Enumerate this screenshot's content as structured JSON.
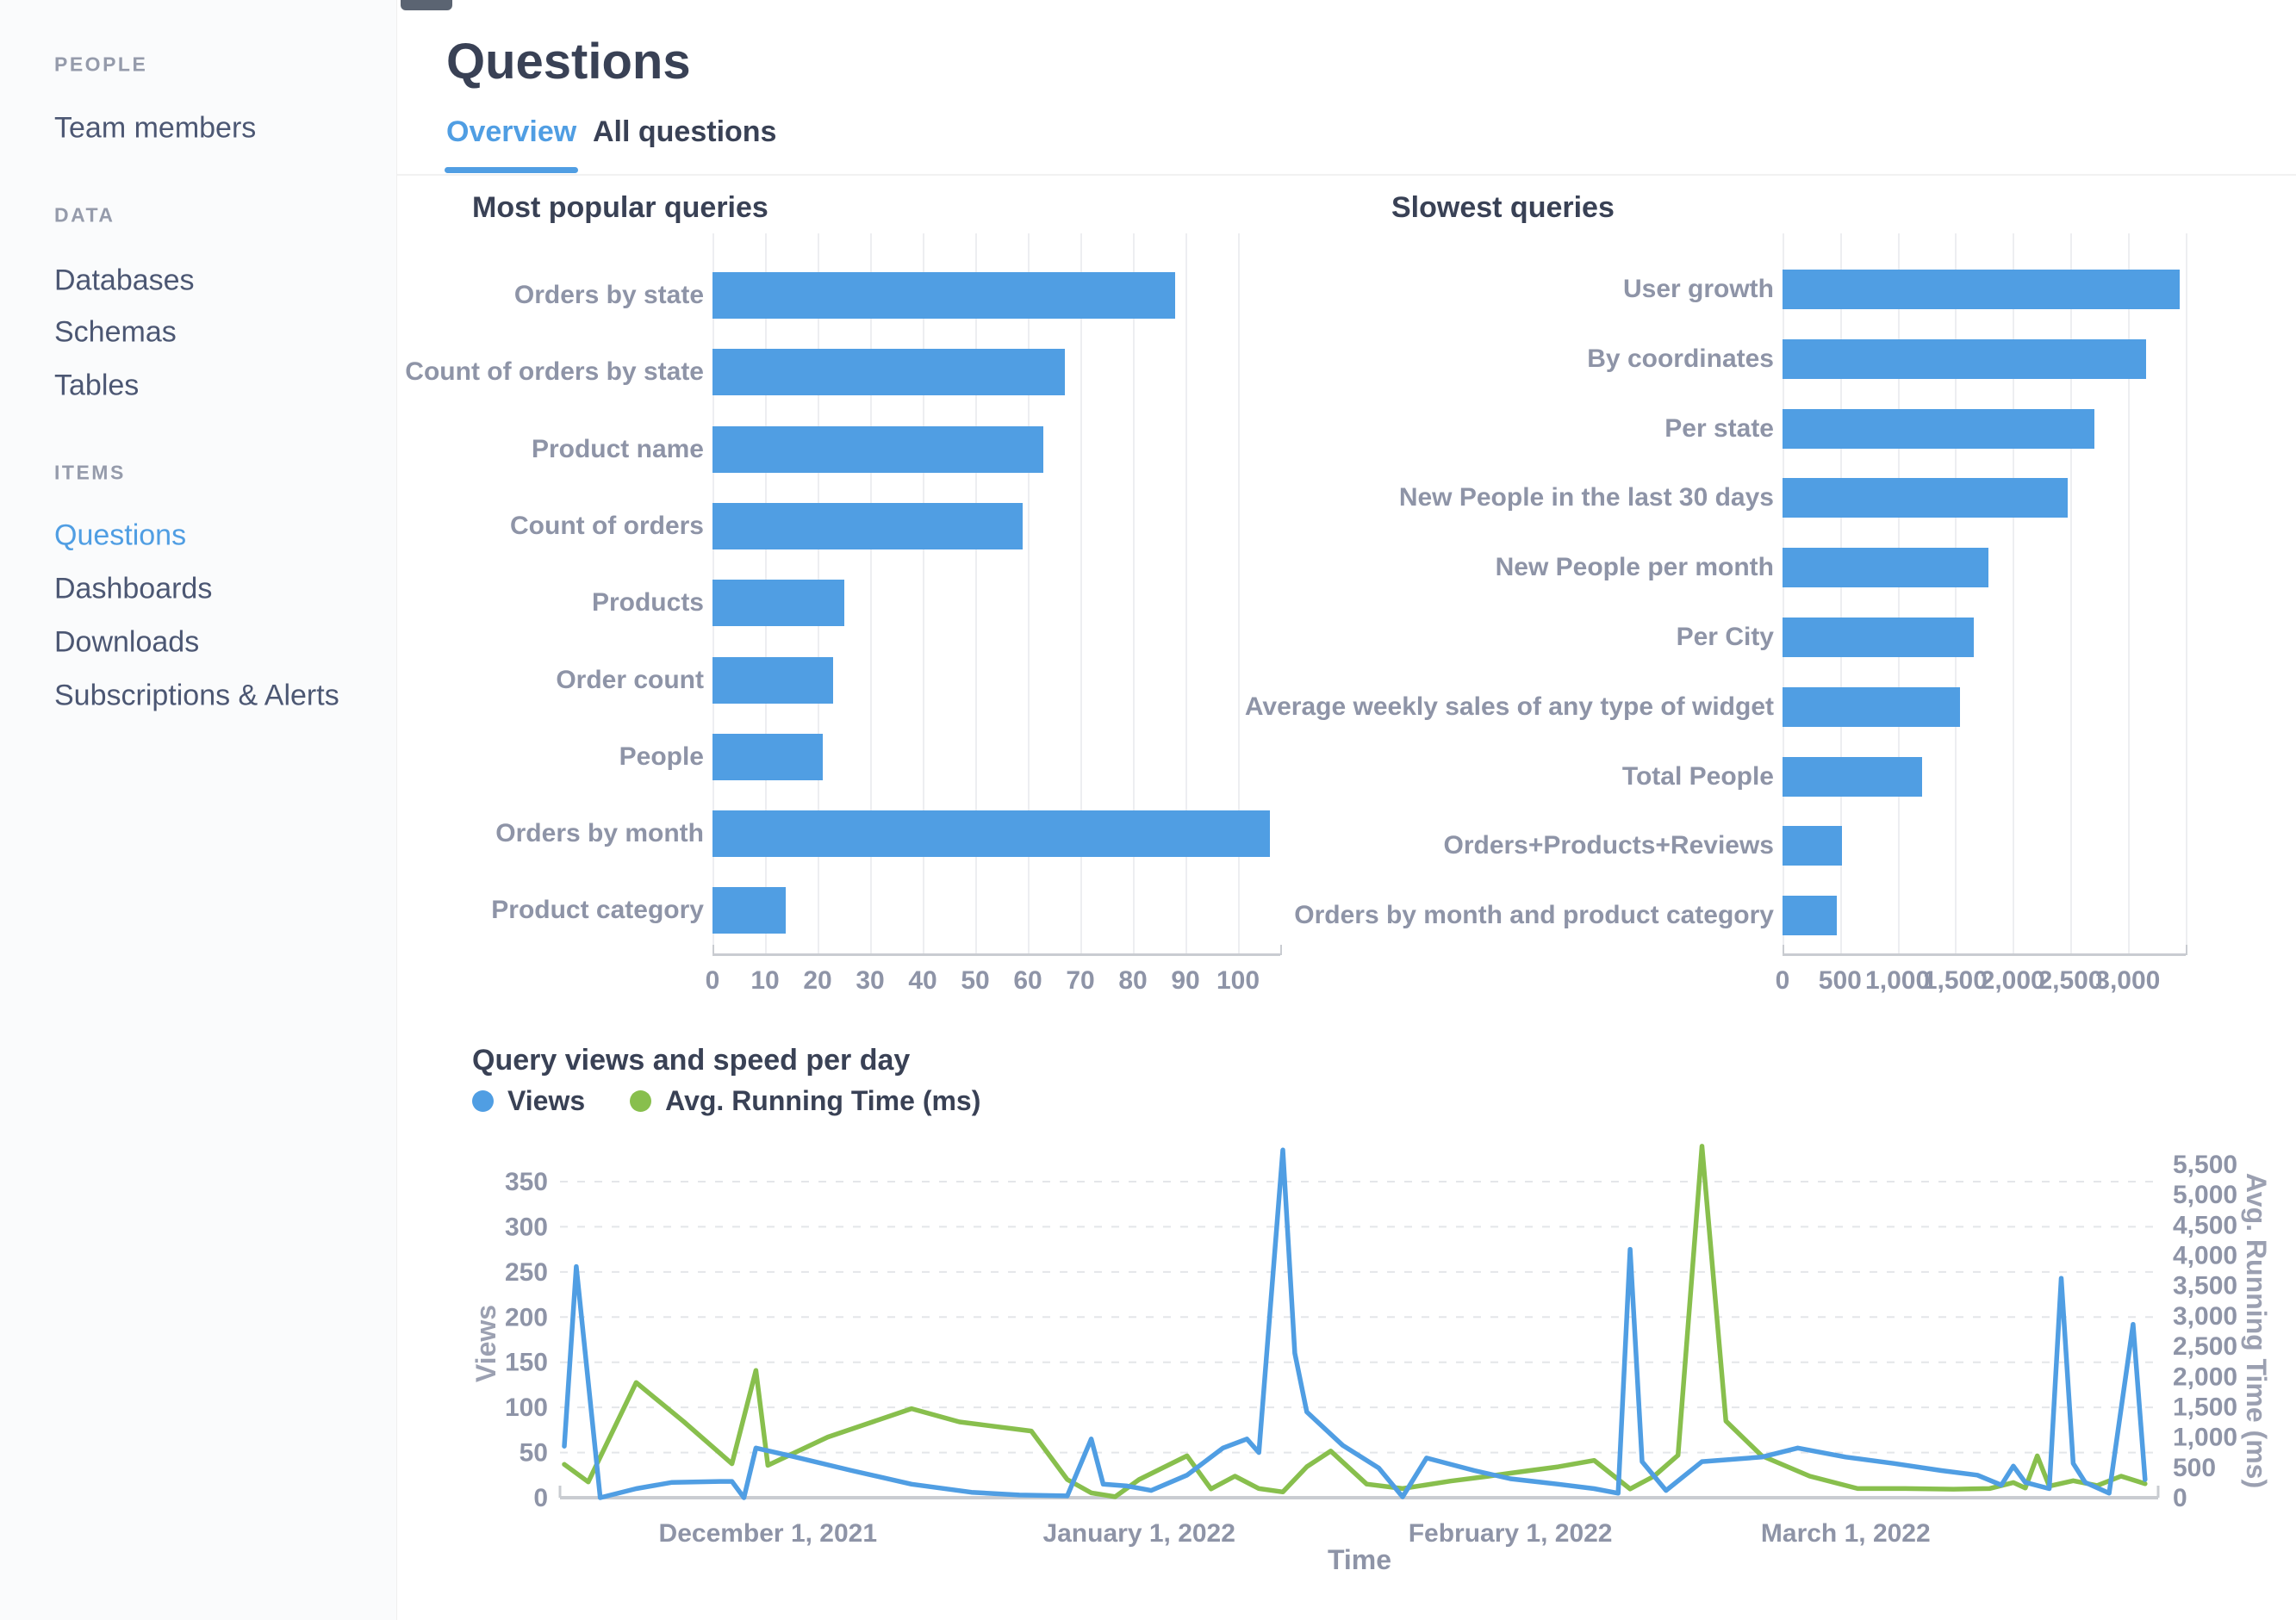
{
  "sidebar": {
    "sections": [
      {
        "title": "PEOPLE",
        "items": [
          {
            "label": "Team members",
            "active": false
          }
        ]
      },
      {
        "title": "DATA",
        "items": [
          {
            "label": "Databases",
            "active": false
          },
          {
            "label": "Schemas",
            "active": false
          },
          {
            "label": "Tables",
            "active": false
          }
        ]
      },
      {
        "title": "ITEMS",
        "items": [
          {
            "label": "Questions",
            "active": true
          },
          {
            "label": "Dashboards",
            "active": false
          },
          {
            "label": "Downloads",
            "active": false
          },
          {
            "label": "Subscriptions & Alerts",
            "active": false
          }
        ]
      }
    ]
  },
  "header": {
    "title": "Questions",
    "tabs": [
      {
        "label": "Overview",
        "active": true
      },
      {
        "label": "All questions",
        "active": false
      }
    ]
  },
  "colors": {
    "accent_blue": "#509EE3",
    "accent_green": "#88BF4D",
    "text_dark": "#394155",
    "text_gray": "#8E94A7",
    "gridline": "#EDEEF1",
    "axis_line": "#C9CCD1",
    "sidebar_bg": "#FAFBFC"
  },
  "chart_data": [
    {
      "type": "bar",
      "orientation": "horizontal",
      "title": "Most popular queries",
      "categories": [
        "Orders by state",
        "Count of orders by state",
        "Product name",
        "Count of orders",
        "Products",
        "Order count",
        "People",
        "Orders by month",
        "Product category"
      ],
      "values": [
        88,
        67,
        63,
        59,
        25,
        23,
        21,
        106,
        14
      ],
      "xlim": [
        0,
        108
      ],
      "grid_step": 10,
      "xtick_values": [
        0,
        10,
        20,
        30,
        40,
        50,
        60,
        70,
        80,
        90,
        100
      ],
      "xtick_labels": [
        "0",
        "10",
        "20",
        "30",
        "40",
        "50",
        "60",
        "70",
        "80",
        "90",
        "100"
      ],
      "bar_color": "#509EE3",
      "grid": true
    },
    {
      "type": "bar",
      "orientation": "horizontal",
      "title": "Slowest queries",
      "categories": [
        "User growth",
        "By coordinates",
        "Per state",
        "New People in the last 30 days",
        "New People per month",
        "Per City",
        "Average weekly sales of any type of widget",
        "Total People",
        "Orders+Products+Reviews",
        "Orders by month and product category"
      ],
      "values": [
        3450,
        3160,
        2710,
        2480,
        1790,
        1660,
        1540,
        1210,
        520,
        470
      ],
      "xlim": [
        0,
        3500
      ],
      "grid_step": 500,
      "xtick_values": [
        0,
        500,
        1000,
        1500,
        2000,
        2500,
        3000
      ],
      "xtick_labels": [
        "0",
        "500",
        "1,000",
        "1,500",
        "2,000",
        "2,500",
        "3,000"
      ],
      "bar_color": "#509EE3",
      "grid": true
    },
    {
      "type": "line",
      "title": "Query views and speed per day",
      "xlabel": "Time",
      "x_span_days": 134,
      "x_ticks": [
        {
          "day": 17,
          "label": "December 1, 2021"
        },
        {
          "day": 48,
          "label": "January 1, 2022"
        },
        {
          "day": 79,
          "label": "February 1, 2022"
        },
        {
          "day": 107,
          "label": "March 1, 2022"
        }
      ],
      "left_axis": {
        "label": "Views",
        "min": 0,
        "max": 350,
        "tick_step": 50,
        "tick_labels": [
          "0",
          "50",
          "100",
          "150",
          "200",
          "250",
          "300",
          "350"
        ]
      },
      "right_axis": {
        "label": "Avg. Running Time (ms)",
        "min": 0,
        "max": 5500,
        "tick_step": 500,
        "tick_labels": [
          "0",
          "500",
          "1,000",
          "1,500",
          "2,000",
          "2,500",
          "3,000",
          "3,500",
          "4,000",
          "4,500",
          "5,000",
          "5,500"
        ]
      },
      "grid": "dashed-horizontal",
      "legend_position": "top-left",
      "series": [
        {
          "name": "Views",
          "color": "#509EE3",
          "axis": "left",
          "points": [
            [
              0,
              57
            ],
            [
              1,
              256
            ],
            [
              3,
              0
            ],
            [
              6,
              10
            ],
            [
              9,
              17
            ],
            [
              13,
              18
            ],
            [
              14,
              18
            ],
            [
              15,
              0
            ],
            [
              16,
              55
            ],
            [
              19,
              46
            ],
            [
              24,
              30
            ],
            [
              29,
              15
            ],
            [
              34,
              6
            ],
            [
              38,
              3
            ],
            [
              42,
              2
            ],
            [
              44,
              65
            ],
            [
              45,
              15
            ],
            [
              47,
              13
            ],
            [
              49,
              8
            ],
            [
              52,
              25
            ],
            [
              55,
              55
            ],
            [
              57,
              65
            ],
            [
              58,
              50
            ],
            [
              60,
              385
            ],
            [
              61,
              160
            ],
            [
              62,
              95
            ],
            [
              65,
              58
            ],
            [
              68,
              33
            ],
            [
              70,
              1
            ],
            [
              72,
              44
            ],
            [
              76,
              30
            ],
            [
              79,
              21
            ],
            [
              83,
              15
            ],
            [
              86,
              10
            ],
            [
              88,
              5
            ],
            [
              89,
              275
            ],
            [
              90,
              40
            ],
            [
              92,
              8
            ],
            [
              95,
              40
            ],
            [
              100,
              45
            ],
            [
              103,
              55
            ],
            [
              107,
              45
            ],
            [
              111,
              38
            ],
            [
              115,
              30
            ],
            [
              118,
              25
            ],
            [
              120,
              14
            ],
            [
              121,
              35
            ],
            [
              122,
              17
            ],
            [
              124,
              10
            ],
            [
              125,
              243
            ],
            [
              126,
              38
            ],
            [
              127,
              17
            ],
            [
              129,
              5
            ],
            [
              131,
              192
            ],
            [
              132,
              20
            ]
          ]
        },
        {
          "name": "Avg. Running Time (ms)",
          "color": "#88BF4D",
          "axis": "right",
          "points": [
            [
              0,
              550
            ],
            [
              2,
              260
            ],
            [
              6,
              1900
            ],
            [
              10,
              1250
            ],
            [
              14,
              560
            ],
            [
              16,
              2100
            ],
            [
              17,
              535
            ],
            [
              22,
              1000
            ],
            [
              29,
              1470
            ],
            [
              33,
              1250
            ],
            [
              39,
              1100
            ],
            [
              42,
              300
            ],
            [
              44,
              80
            ],
            [
              46,
              15
            ],
            [
              48,
              300
            ],
            [
              52,
              690
            ],
            [
              54,
              145
            ],
            [
              56,
              355
            ],
            [
              58,
              150
            ],
            [
              60,
              95
            ],
            [
              62,
              510
            ],
            [
              64,
              770
            ],
            [
              67,
              225
            ],
            [
              70,
              150
            ],
            [
              74,
              275
            ],
            [
              77,
              350
            ],
            [
              79,
              405
            ],
            [
              83,
              510
            ],
            [
              86,
              615
            ],
            [
              89,
              145
            ],
            [
              91,
              355
            ],
            [
              93,
              700
            ],
            [
              95,
              5800
            ],
            [
              97,
              1265
            ],
            [
              100,
              690
            ],
            [
              104,
              355
            ],
            [
              108,
              150
            ],
            [
              112,
              150
            ],
            [
              116,
              140
            ],
            [
              119,
              150
            ],
            [
              121,
              250
            ],
            [
              122,
              160
            ],
            [
              123,
              690
            ],
            [
              124,
              190
            ],
            [
              126,
              280
            ],
            [
              128,
              200
            ],
            [
              130,
              355
            ],
            [
              132,
              230
            ]
          ]
        }
      ]
    }
  ]
}
